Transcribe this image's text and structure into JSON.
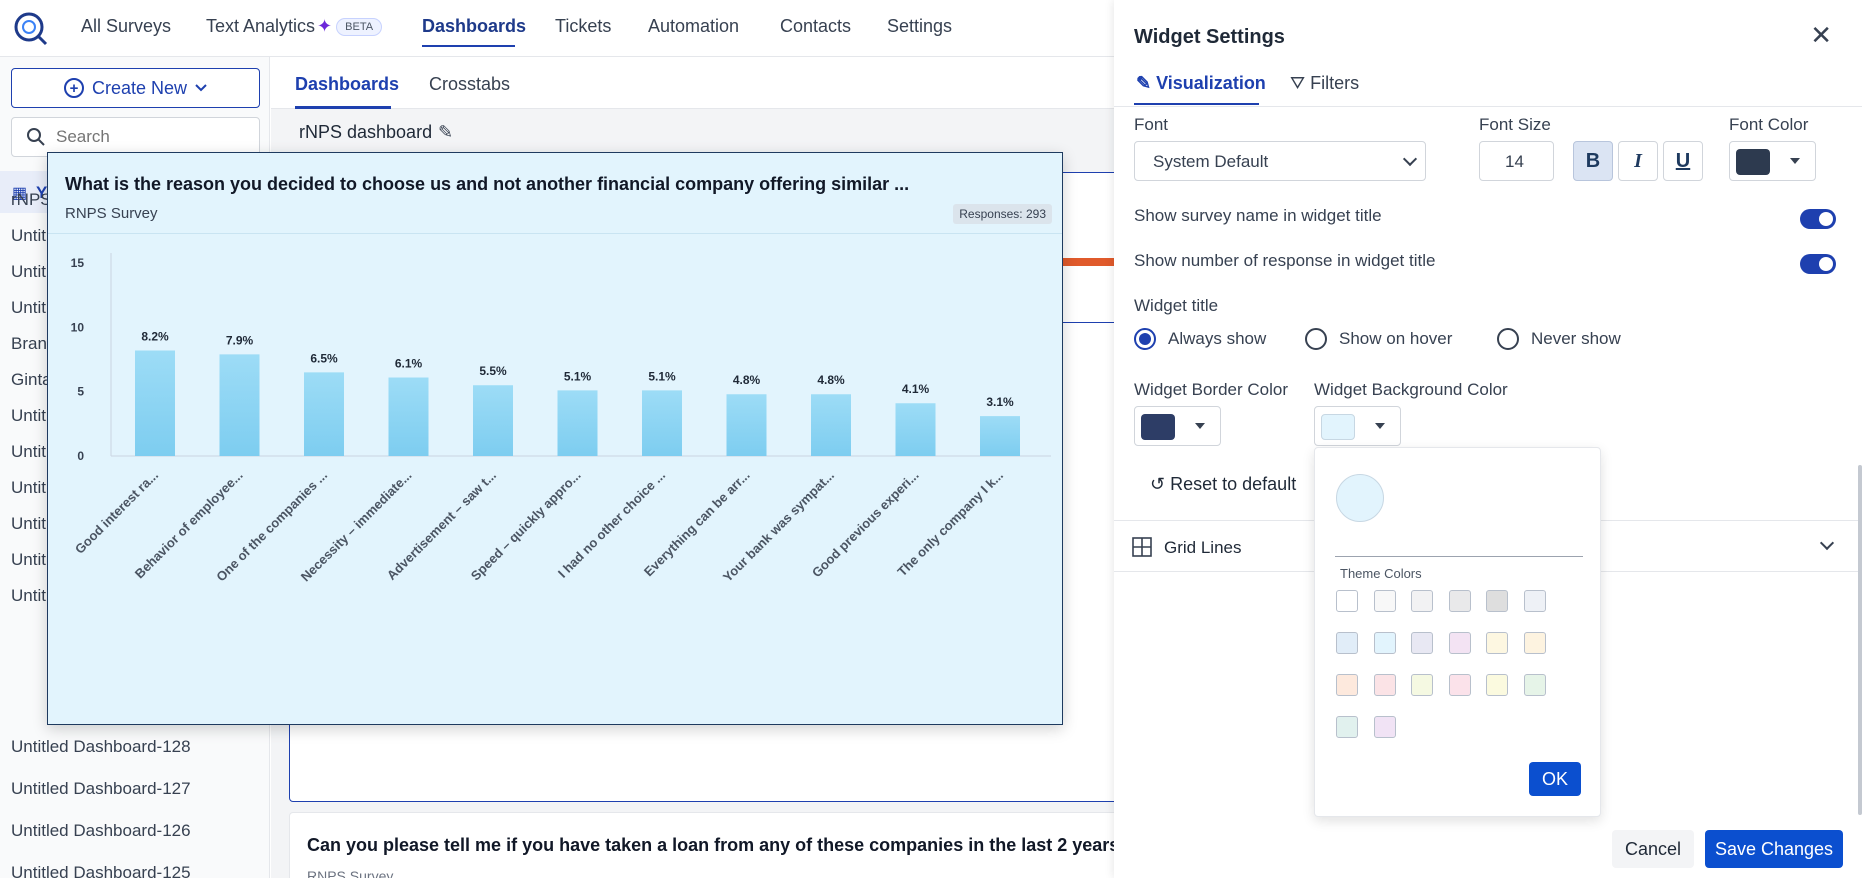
{
  "nav": {
    "items": [
      "All Surveys",
      "Text Analytics",
      "Dashboards",
      "Tickets",
      "Automation",
      "Contacts",
      "Settings"
    ],
    "beta_label": "BETA",
    "active": "Dashboards"
  },
  "sidebar": {
    "create_label": "Create New",
    "search_placeholder": "Search",
    "your_label": "Y",
    "items": [
      "rNPS",
      "Untit",
      "Untit",
      "Untit",
      "Bran",
      "Ginta",
      "Untit",
      "Untit",
      "Untit",
      "Untit",
      "Untit",
      "Untit",
      "Untitled Dashboard-128",
      "Untitled Dashboard-127",
      "Untitled Dashboard-126",
      "Untitled Dashboard-125"
    ]
  },
  "main": {
    "tabs": [
      "Dashboards",
      "Crosstabs"
    ],
    "dashboard_title": "rNPS dashboard",
    "bg_question": "Can you please tell me if you have taken a loan from any of these companies in the last 2 years?",
    "bg_survey": "RNPS Survey"
  },
  "widget": {
    "title": "What is the reason you decided to choose us and not another financial company offering similar ...",
    "survey": "RNPS Survey",
    "responses": "Responses: 293"
  },
  "chart_data": {
    "type": "bar",
    "categories": [
      "Good interest ra...",
      "Behavior of employee...",
      "One of the companies ...",
      "Necessity – immediate...",
      "Advertisement – saw t...",
      "Speed – quickly appro...",
      "I had no other choice ...",
      "Everything can be arr...",
      "Your bank was sympat...",
      "Good previous experi...",
      "The only company I k..."
    ],
    "values": [
      8.2,
      7.9,
      6.5,
      6.1,
      5.5,
      5.1,
      5.1,
      4.8,
      4.8,
      4.1,
      3.1
    ],
    "data_labels": [
      "8.2%",
      "7.9%",
      "6.5%",
      "6.1%",
      "5.5%",
      "5.1%",
      "5.1%",
      "4.8%",
      "4.8%",
      "4.1%",
      "3.1%"
    ],
    "ylim": [
      0,
      15
    ],
    "yticks": [
      "0",
      "5",
      "10",
      "15"
    ],
    "title": "",
    "xlabel": "",
    "ylabel": "",
    "bar_color": "#7dcdf0",
    "grid": false
  },
  "settings": {
    "title": "Widget Settings",
    "tabs": [
      "Visualization",
      "Filters"
    ],
    "font_label": "Font",
    "font_value": "System Default",
    "font_size_label": "Font Size",
    "font_size_value": "14",
    "format_buttons": [
      "B",
      "I",
      "U"
    ],
    "font_color_label": "Font Color",
    "font_color": "#2d3a4f",
    "toggles": [
      "Show survey name in widget title",
      "Show number of response in widget title"
    ],
    "widget_title_label": "Widget title",
    "radios": [
      "Always show",
      "Show on hover",
      "Never show"
    ],
    "border_color_label": "Widget Border Color",
    "border_color": "#2d3d66",
    "bg_color_label": "Widget Background Color",
    "bg_color": "#e2f4fd",
    "reset_label": "Reset to default",
    "grid_lines_label": "Grid Lines",
    "cancel_label": "Cancel",
    "save_label": "Save Changes"
  },
  "popover": {
    "theme_label": "Theme Colors",
    "ok_label": "OK",
    "swatches": [
      "#ffffff",
      "#f8f8f8",
      "#f2f2f3",
      "#e9e9ea",
      "#dedede",
      "#eef1f6",
      "#e1edf8",
      "#e2f4fd",
      "#e8e8f3",
      "#f3e3f3",
      "#fdf7e1",
      "#fdf3e0",
      "#fde9dd",
      "#fbe3e6",
      "#f5f9e2",
      "#fbe2ea",
      "#fbfadf",
      "#e6f4e8",
      "#e1f1ee",
      "#f1e3f5"
    ]
  }
}
